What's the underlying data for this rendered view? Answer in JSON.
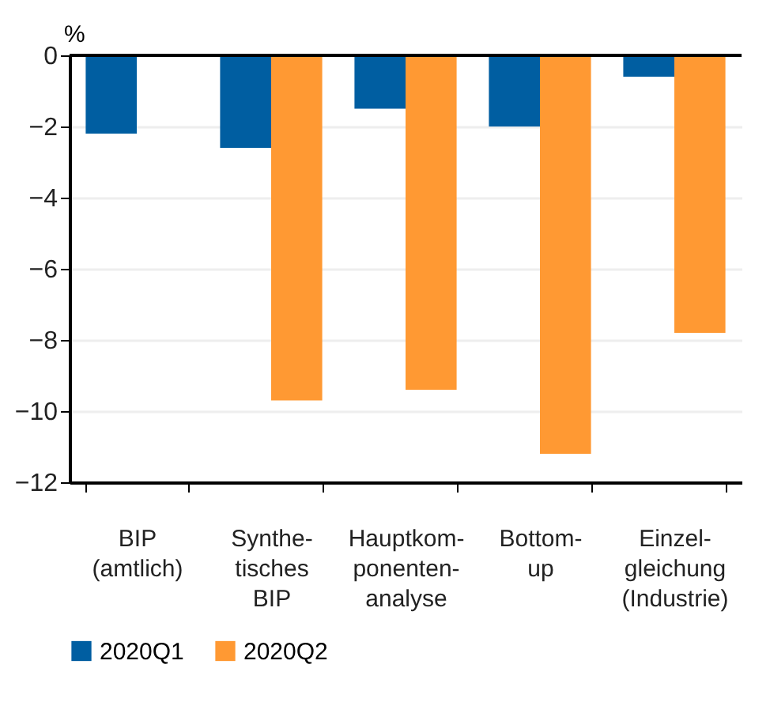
{
  "chart_data": {
    "type": "bar",
    "ylabel": "%",
    "categories": [
      "BIP\n(amtlich)",
      "Synthe-\ntisches\nBIP",
      "Hauptkom-\nponenten-\nanalyse",
      "Bottom-\nup",
      "Einzel-\ngleichung\n(Industrie)"
    ],
    "series": [
      {
        "name": "2020Q1",
        "color": "#005ea1",
        "values": [
          -2.2,
          -2.6,
          -1.5,
          -2.0,
          -0.6
        ]
      },
      {
        "name": "2020Q2",
        "color": "#ff9933",
        "values": [
          null,
          -9.7,
          -9.4,
          -11.2,
          -7.8
        ]
      }
    ],
    "ylim": [
      -12,
      0
    ],
    "yticks": [
      0,
      -2,
      -4,
      -6,
      -8,
      -10,
      -12
    ],
    "grid": "y",
    "legend": "bottom left"
  }
}
